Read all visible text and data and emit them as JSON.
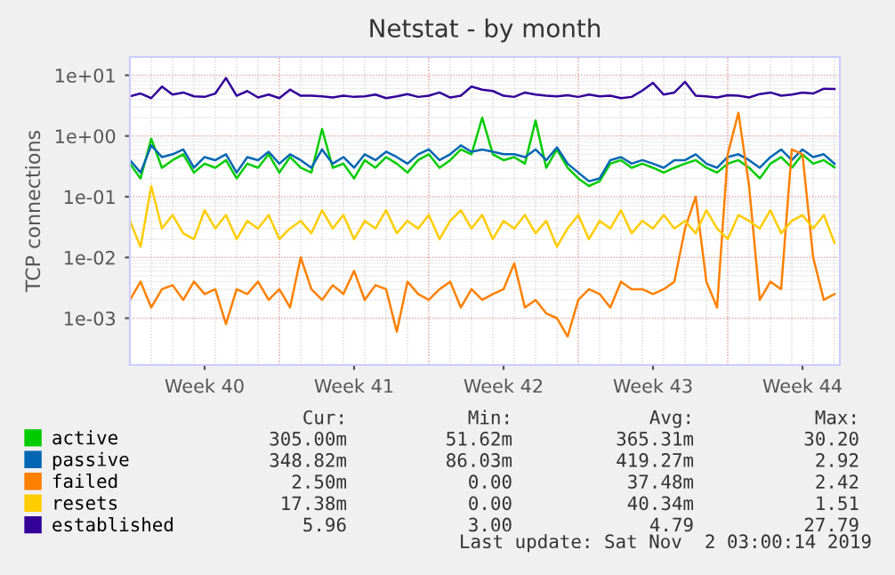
{
  "chart_data": {
    "type": "line",
    "title": "Netstat - by month",
    "ylabel": "TCP connections",
    "categories": [
      null,
      null,
      null,
      null,
      null,
      null,
      null,
      "Week 40",
      null,
      null,
      null,
      null,
      null,
      null,
      null,
      null,
      null,
      null,
      null,
      null,
      null,
      "Week 41",
      null,
      null,
      null,
      null,
      null,
      null,
      null,
      null,
      null,
      null,
      null,
      null,
      null,
      "Week 42",
      null,
      null,
      null,
      null,
      null,
      null,
      null,
      null,
      null,
      null,
      null,
      null,
      null,
      "Week 43",
      null,
      null,
      null,
      null,
      null,
      null,
      null,
      null,
      null,
      null,
      null,
      null,
      null,
      "Week 44",
      null,
      null,
      null
    ],
    "series": [
      {
        "name": "active",
        "color": "#00cc00",
        "values": [
          0.35,
          0.2,
          0.9,
          0.3,
          0.4,
          0.5,
          0.25,
          0.35,
          0.3,
          0.4,
          0.2,
          0.35,
          0.3,
          0.5,
          0.25,
          0.45,
          0.3,
          0.25,
          1.3,
          0.3,
          0.35,
          0.2,
          0.4,
          0.3,
          0.45,
          0.35,
          0.25,
          0.4,
          0.5,
          0.3,
          0.4,
          0.6,
          0.5,
          2.0,
          0.5,
          0.4,
          0.45,
          0.35,
          1.8,
          0.3,
          0.6,
          0.3,
          0.2,
          0.15,
          0.18,
          0.35,
          0.4,
          0.3,
          0.35,
          0.3,
          0.25,
          0.3,
          0.35,
          0.4,
          0.3,
          0.25,
          0.35,
          0.4,
          0.3,
          0.2,
          0.35,
          0.45,
          0.3,
          0.5,
          0.35,
          0.4,
          0.305
        ]
      },
      {
        "name": "passive",
        "color": "#0066b3",
        "values": [
          0.4,
          0.25,
          0.7,
          0.45,
          0.5,
          0.6,
          0.3,
          0.45,
          0.4,
          0.5,
          0.25,
          0.45,
          0.4,
          0.55,
          0.35,
          0.5,
          0.4,
          0.3,
          0.6,
          0.35,
          0.45,
          0.3,
          0.5,
          0.4,
          0.55,
          0.45,
          0.35,
          0.5,
          0.6,
          0.4,
          0.5,
          0.7,
          0.55,
          0.6,
          0.55,
          0.5,
          0.5,
          0.45,
          0.6,
          0.4,
          0.65,
          0.35,
          0.25,
          0.18,
          0.2,
          0.4,
          0.45,
          0.35,
          0.4,
          0.35,
          0.3,
          0.4,
          0.4,
          0.5,
          0.35,
          0.3,
          0.45,
          0.5,
          0.4,
          0.3,
          0.45,
          0.6,
          0.4,
          0.6,
          0.45,
          0.5,
          0.349
        ]
      },
      {
        "name": "failed",
        "color": "#ff8000",
        "values": [
          0.002,
          0.004,
          0.0015,
          0.003,
          0.0035,
          0.002,
          0.004,
          0.0025,
          0.003,
          0.0008,
          0.003,
          0.0025,
          0.004,
          0.002,
          0.003,
          0.0015,
          0.01,
          0.003,
          0.002,
          0.0035,
          0.0025,
          0.006,
          0.002,
          0.0035,
          0.003,
          0.0006,
          0.004,
          0.0025,
          0.002,
          0.003,
          0.004,
          0.0015,
          0.003,
          0.002,
          0.0025,
          0.003,
          0.008,
          0.0015,
          0.002,
          0.0012,
          0.001,
          0.0005,
          0.002,
          0.003,
          0.0025,
          0.0015,
          0.004,
          0.003,
          0.003,
          0.0025,
          0.003,
          0.004,
          0.03,
          0.1,
          0.004,
          0.0015,
          0.5,
          2.42,
          0.15,
          0.002,
          0.004,
          0.003,
          0.6,
          0.5,
          0.01,
          0.002,
          0.0025
        ]
      },
      {
        "name": "resets",
        "color": "#ffcc00",
        "values": [
          0.04,
          0.015,
          0.15,
          0.03,
          0.05,
          0.025,
          0.02,
          0.06,
          0.03,
          0.05,
          0.02,
          0.04,
          0.03,
          0.05,
          0.02,
          0.03,
          0.04,
          0.025,
          0.06,
          0.03,
          0.05,
          0.02,
          0.04,
          0.03,
          0.06,
          0.025,
          0.04,
          0.03,
          0.05,
          0.02,
          0.04,
          0.06,
          0.03,
          0.05,
          0.02,
          0.04,
          0.03,
          0.05,
          0.025,
          0.04,
          0.015,
          0.03,
          0.05,
          0.02,
          0.04,
          0.03,
          0.06,
          0.025,
          0.04,
          0.03,
          0.05,
          0.03,
          0.04,
          0.025,
          0.06,
          0.03,
          0.02,
          0.05,
          0.04,
          0.03,
          0.06,
          0.025,
          0.04,
          0.05,
          0.03,
          0.05,
          0.0174
        ]
      },
      {
        "name": "established",
        "color": "#330099",
        "values": [
          4.5,
          5,
          4.2,
          6.5,
          4.8,
          5.2,
          4.5,
          4.4,
          5,
          9,
          4.6,
          5.5,
          4.3,
          4.8,
          4.2,
          5.8,
          4.6,
          4.6,
          4.5,
          4.3,
          4.6,
          4.4,
          4.5,
          4.8,
          4.2,
          4.5,
          4.9,
          4.4,
          4.6,
          5.2,
          4.3,
          4.6,
          6.5,
          5.8,
          5.5,
          4.6,
          4.4,
          5.2,
          4.8,
          4.6,
          4.5,
          4.7,
          4.4,
          4.8,
          4.5,
          4.6,
          4.2,
          4.4,
          5.6,
          7.5,
          4.8,
          5.2,
          7.8,
          4.6,
          4.5,
          4.3,
          4.7,
          4.6,
          4.3,
          4.9,
          5.2,
          4.6,
          4.8,
          5.2,
          5,
          6,
          5.96
        ]
      }
    ],
    "log": "y",
    "ylim": [
      0.00017,
      20
    ],
    "yticks": [
      {
        "value": 0.001,
        "label": "1e-03"
      },
      {
        "value": 0.01,
        "label": "1e-02"
      },
      {
        "value": 0.1,
        "label": "1e-01"
      },
      {
        "value": 1,
        "label": "1e+00"
      },
      {
        "value": 10,
        "label": "1e+01"
      }
    ],
    "grid": true,
    "legend": "bottom",
    "line_style": "solid",
    "annotations": [
      "Cur:",
      "Min:",
      "Avg:",
      "Max:",
      "305.00m",
      "51.62m",
      "365.31m",
      "30.20",
      "348.82m",
      "86.03m",
      "419.27m",
      "2.92",
      "2.50m",
      "0.00",
      "37.48m",
      "2.42",
      "17.38m",
      "0.00",
      "40.34m",
      "1.51",
      "5.96",
      "3.00",
      "4.79",
      "27.79",
      "Last update: Sat Nov  2 03:00:14 2019"
    ]
  }
}
